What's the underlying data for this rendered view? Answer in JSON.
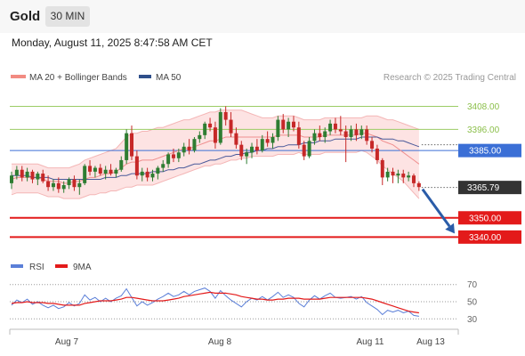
{
  "header": {
    "instrument": "Gold",
    "timeframe": "30 MIN",
    "datetime": "Monday, August 11, 2025 8:47:58 AM CET"
  },
  "legend": {
    "bollinger_label": "MA 20 + Bollinger Bands",
    "ma50_label": "MA 50",
    "rsi_label": "RSI",
    "rsi_ma_label": "9MA"
  },
  "copyright": "Research © 2025 Trading Central",
  "colors": {
    "bull": "#2e7d32",
    "bear": "#c62828",
    "resistance": "#9ccc65",
    "pivot": "#3b6fd6",
    "support": "#e31a1a",
    "arrow": "#2a5ca8",
    "band_fill": "#fde3e3",
    "ma50": "#4a5a9a",
    "rsi": "#5b7fd8",
    "rsi_ma": "#e31a1a"
  },
  "chart_data": [
    {
      "type": "candlestick",
      "title": "",
      "x_ticks": [
        "Aug 7",
        "Aug 8",
        "Aug 11",
        "Aug 13"
      ],
      "y_ticks": [
        3408.0,
        3396.0,
        3385.0,
        3365.79,
        3350.0,
        3340.0
      ],
      "ylim": [
        3336,
        3417
      ],
      "levels": [
        {
          "label": "3408.00",
          "value": 3408.0,
          "kind": "resistance"
        },
        {
          "label": "3396.00",
          "value": 3396.0,
          "kind": "resistance"
        },
        {
          "label": "3385.00",
          "value": 3385.0,
          "kind": "pivot"
        },
        {
          "label": "3350.00",
          "value": 3350.0,
          "kind": "support"
        },
        {
          "label": "3340.00",
          "value": 3340.0,
          "kind": "support"
        }
      ],
      "last_price": {
        "label": "3365.79",
        "value": 3365.79
      },
      "forecast_arrow": {
        "from": 3365.79,
        "to": 3340.0
      },
      "candles": [
        [
          3368,
          3374,
          3365,
          3372
        ],
        [
          3372,
          3377,
          3370,
          3375
        ],
        [
          3375,
          3377,
          3369,
          3371
        ],
        [
          3371,
          3376,
          3369,
          3374
        ],
        [
          3374,
          3375,
          3368,
          3370
        ],
        [
          3370,
          3374,
          3367,
          3373
        ],
        [
          3373,
          3375,
          3368,
          3369
        ],
        [
          3369,
          3372,
          3364,
          3366
        ],
        [
          3366,
          3370,
          3364,
          3368
        ],
        [
          3368,
          3371,
          3363,
          3365
        ],
        [
          3365,
          3369,
          3363,
          3367
        ],
        [
          3367,
          3371,
          3365,
          3370
        ],
        [
          3370,
          3372,
          3364,
          3366
        ],
        [
          3366,
          3370,
          3362,
          3368
        ],
        [
          3368,
          3378,
          3367,
          3377
        ],
        [
          3377,
          3380,
          3372,
          3374
        ],
        [
          3374,
          3377,
          3371,
          3376
        ],
        [
          3376,
          3378,
          3372,
          3373
        ],
        [
          3373,
          3377,
          3370,
          3375
        ],
        [
          3375,
          3378,
          3372,
          3373
        ],
        [
          3373,
          3376,
          3371,
          3375
        ],
        [
          3375,
          3382,
          3374,
          3380
        ],
        [
          3380,
          3396,
          3378,
          3394
        ],
        [
          3394,
          3398,
          3380,
          3382
        ],
        [
          3382,
          3385,
          3370,
          3372
        ],
        [
          3372,
          3376,
          3369,
          3374
        ],
        [
          3374,
          3376,
          3369,
          3371
        ],
        [
          3371,
          3375,
          3369,
          3373
        ],
        [
          3373,
          3377,
          3370,
          3376
        ],
        [
          3376,
          3380,
          3374,
          3378
        ],
        [
          3378,
          3384,
          3376,
          3383
        ],
        [
          3383,
          3386,
          3379,
          3381
        ],
        [
          3381,
          3386,
          3379,
          3384
        ],
        [
          3384,
          3389,
          3382,
          3387
        ],
        [
          3387,
          3391,
          3383,
          3385
        ],
        [
          3385,
          3392,
          3384,
          3391
        ],
        [
          3391,
          3395,
          3389,
          3393
        ],
        [
          3393,
          3400,
          3391,
          3399
        ],
        [
          3399,
          3402,
          3395,
          3397
        ],
        [
          3397,
          3400,
          3386,
          3389
        ],
        [
          3389,
          3407,
          3388,
          3405
        ],
        [
          3405,
          3408,
          3398,
          3401
        ],
        [
          3401,
          3405,
          3392,
          3394
        ],
        [
          3394,
          3397,
          3386,
          3388
        ],
        [
          3388,
          3390,
          3380,
          3382
        ],
        [
          3382,
          3386,
          3378,
          3384
        ],
        [
          3384,
          3389,
          3381,
          3387
        ],
        [
          3387,
          3391,
          3383,
          3385
        ],
        [
          3385,
          3393,
          3384,
          3391
        ],
        [
          3391,
          3395,
          3387,
          3389
        ],
        [
          3389,
          3394,
          3386,
          3392
        ],
        [
          3392,
          3403,
          3390,
          3401
        ],
        [
          3401,
          3404,
          3394,
          3396
        ],
        [
          3396,
          3402,
          3392,
          3400
        ],
        [
          3400,
          3403,
          3395,
          3397
        ],
        [
          3397,
          3400,
          3386,
          3388
        ],
        [
          3388,
          3390,
          3380,
          3382
        ],
        [
          3382,
          3392,
          3381,
          3390
        ],
        [
          3390,
          3396,
          3388,
          3394
        ],
        [
          3394,
          3398,
          3390,
          3392
        ],
        [
          3392,
          3397,
          3389,
          3395
        ],
        [
          3395,
          3401,
          3393,
          3399
        ],
        [
          3399,
          3402,
          3394,
          3396
        ],
        [
          3396,
          3403,
          3393,
          3395
        ],
        [
          3395,
          3398,
          3379,
          3392
        ],
        [
          3392,
          3398,
          3390,
          3396
        ],
        [
          3396,
          3399,
          3390,
          3393
        ],
        [
          3393,
          3398,
          3391,
          3396
        ],
        [
          3396,
          3398,
          3388,
          3390
        ],
        [
          3390,
          3392,
          3384,
          3386
        ],
        [
          3386,
          3388,
          3378,
          3380
        ],
        [
          3380,
          3381,
          3367,
          3371
        ],
        [
          3371,
          3376,
          3369,
          3374
        ],
        [
          3374,
          3376,
          3368,
          3372
        ],
        [
          3372,
          3375,
          3368,
          3373
        ],
        [
          3373,
          3375,
          3368,
          3371
        ],
        [
          3371,
          3374,
          3369,
          3372
        ],
        [
          3372,
          3373,
          3366,
          3368
        ],
        [
          3368,
          3369,
          3364,
          3366
        ]
      ],
      "ma20": [
        3370,
        3371,
        3371,
        3371,
        3371,
        3371,
        3370,
        3369,
        3369,
        3369,
        3368,
        3368,
        3369,
        3369,
        3370,
        3371,
        3371,
        3372,
        3373,
        3373,
        3374,
        3376,
        3378,
        3379,
        3379,
        3380,
        3380,
        3380,
        3381,
        3382,
        3383,
        3384,
        3385,
        3386,
        3386,
        3387,
        3388,
        3389,
        3390,
        3390,
        3391,
        3392,
        3392,
        3392,
        3392,
        3392,
        3392,
        3392,
        3392,
        3392,
        3392,
        3393,
        3393,
        3393,
        3393,
        3393,
        3392,
        3392,
        3392,
        3392,
        3393,
        3393,
        3393,
        3393,
        3393,
        3393,
        3393,
        3394,
        3394,
        3393,
        3392,
        3390,
        3389,
        3388,
        3386,
        3384,
        3382,
        3380,
        3378
      ],
      "band_upper": [
        3378,
        3378,
        3378,
        3378,
        3378,
        3378,
        3377,
        3376,
        3376,
        3376,
        3376,
        3376,
        3377,
        3378,
        3380,
        3381,
        3382,
        3383,
        3384,
        3385,
        3386,
        3389,
        3392,
        3394,
        3394,
        3395,
        3395,
        3396,
        3397,
        3397,
        3398,
        3399,
        3400,
        3401,
        3401,
        3402,
        3403,
        3404,
        3405,
        3405,
        3406,
        3406,
        3406,
        3406,
        3406,
        3405,
        3404,
        3403,
        3402,
        3402,
        3402,
        3403,
        3403,
        3403,
        3403,
        3402,
        3401,
        3401,
        3401,
        3401,
        3402,
        3402,
        3402,
        3402,
        3402,
        3402,
        3402,
        3402,
        3403,
        3403,
        3403,
        3402,
        3401,
        3401,
        3400,
        3399,
        3398,
        3397,
        3396
      ],
      "band_lower": [
        3362,
        3363,
        3363,
        3363,
        3363,
        3363,
        3362,
        3361,
        3361,
        3361,
        3360,
        3360,
        3360,
        3360,
        3361,
        3362,
        3362,
        3363,
        3363,
        3364,
        3364,
        3365,
        3366,
        3366,
        3367,
        3367,
        3367,
        3367,
        3368,
        3369,
        3370,
        3371,
        3372,
        3373,
        3374,
        3375,
        3376,
        3377,
        3377,
        3378,
        3378,
        3379,
        3380,
        3380,
        3381,
        3381,
        3382,
        3382,
        3382,
        3382,
        3382,
        3383,
        3383,
        3383,
        3383,
        3384,
        3383,
        3383,
        3383,
        3383,
        3384,
        3384,
        3384,
        3384,
        3384,
        3384,
        3384,
        3385,
        3384,
        3382,
        3380,
        3377,
        3375,
        3373,
        3371,
        3369,
        3366,
        3363,
        3360
      ],
      "ma50": [
        3372,
        3372,
        3372,
        3372,
        3371,
        3371,
        3371,
        3371,
        3370,
        3370,
        3370,
        3370,
        3370,
        3370,
        3370,
        3370,
        3370,
        3370,
        3371,
        3371,
        3371,
        3372,
        3372,
        3373,
        3373,
        3373,
        3373,
        3374,
        3374,
        3374,
        3375,
        3375,
        3376,
        3376,
        3377,
        3378,
        3378,
        3379,
        3380,
        3380,
        3381,
        3382,
        3382,
        3383,
        3383,
        3384,
        3384,
        3385,
        3385,
        3386,
        3386,
        3387,
        3387,
        3388,
        3388,
        3388,
        3389,
        3389,
        3389,
        3390,
        3390,
        3390,
        3391,
        3391,
        3391,
        3391,
        3391,
        3392,
        3392,
        3392,
        3392,
        3391,
        3391,
        3391,
        3390,
        3390,
        3389,
        3388,
        3387
      ]
    },
    {
      "type": "line",
      "title": "",
      "y_ticks": [
        70,
        50,
        30
      ],
      "ylim": [
        22,
        78
      ],
      "series": [
        {
          "name": "RSI",
          "values": [
            46,
            52,
            49,
            53,
            47,
            50,
            46,
            43,
            46,
            42,
            44,
            49,
            45,
            48,
            58,
            52,
            55,
            50,
            54,
            50,
            54,
            57,
            65,
            55,
            45,
            50,
            46,
            49,
            53,
            56,
            60,
            56,
            58,
            62,
            58,
            62,
            64,
            66,
            62,
            54,
            63,
            57,
            52,
            48,
            44,
            50,
            54,
            52,
            56,
            52,
            56,
            61,
            55,
            58,
            55,
            48,
            44,
            52,
            57,
            53,
            57,
            60,
            55,
            54,
            55,
            56,
            53,
            56,
            49,
            45,
            41,
            35,
            40,
            38,
            40,
            37,
            39,
            34,
            33
          ]
        },
        {
          "name": "9MA",
          "values": [
            48,
            49,
            49,
            50,
            49,
            49,
            49,
            48,
            48,
            47,
            46,
            46,
            46,
            46,
            48,
            49,
            50,
            51,
            51,
            51,
            52,
            53,
            55,
            55,
            54,
            53,
            52,
            51,
            51,
            51,
            52,
            53,
            54,
            56,
            57,
            58,
            59,
            60,
            61,
            60,
            60,
            60,
            59,
            58,
            56,
            55,
            54,
            53,
            53,
            52,
            52,
            53,
            53,
            54,
            54,
            54,
            53,
            53,
            53,
            53,
            54,
            55,
            55,
            55,
            55,
            55,
            55,
            55,
            54,
            53,
            51,
            49,
            47,
            45,
            43,
            41,
            39,
            38,
            37
          ]
        }
      ]
    }
  ],
  "axes": {
    "levels": {
      "r1": "3408.00",
      "r2": "3396.00",
      "pivot": "3385.00",
      "last": "3365.79",
      "s1": "3350.00",
      "s2": "3340.00"
    },
    "rsi_ticks": {
      "t70": "70",
      "t50": "50",
      "t30": "30"
    },
    "x": {
      "d1": "Aug 7",
      "d2": "Aug 8",
      "d3": "Aug 11",
      "d4": "Aug 13"
    }
  }
}
